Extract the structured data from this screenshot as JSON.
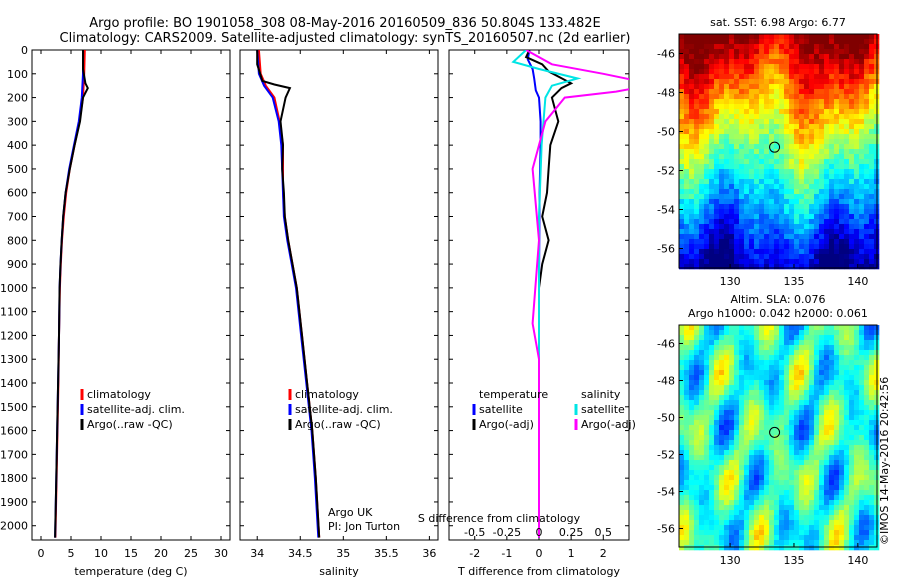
{
  "header": {
    "line1": "Argo profile: BO 1901058_308 08-May-2016 20160509_836 50.804S 133.482E",
    "line2": "Climatology: CARS2009. Satellite-adjusted climatology: synTS_20160507.nc (2d earlier)"
  },
  "colors": {
    "climatology": "#ff0000",
    "satellite": "#0000ff",
    "argo": "#000000",
    "sal_satellite": "#00e5e5",
    "sal_argo": "#ff00ff"
  },
  "chart_data": [
    {
      "type": "line",
      "name": "temperature",
      "xlabel": "temperature (deg C)",
      "ylabel": "",
      "xlim": [
        -1.5,
        31.5
      ],
      "ylim": [
        0,
        2060
      ],
      "x_ticks": [
        0,
        5,
        10,
        15,
        20,
        25,
        30
      ],
      "y_ticks": [
        0,
        100,
        200,
        300,
        400,
        500,
        600,
        700,
        800,
        900,
        1000,
        1100,
        1200,
        1300,
        1400,
        1500,
        1600,
        1700,
        1800,
        1900,
        2000
      ],
      "legend": [
        "climatology",
        "satellite-adj. clim.",
        "Argo(..raw -QC)"
      ],
      "series": [
        {
          "name": "climatology",
          "points": [
            [
              7.3,
              0
            ],
            [
              7.2,
              100
            ],
            [
              7.0,
              200
            ],
            [
              6.4,
              300
            ],
            [
              5.6,
              400
            ],
            [
              4.8,
              500
            ],
            [
              4.2,
              600
            ],
            [
              3.8,
              700
            ],
            [
              3.5,
              800
            ],
            [
              3.3,
              900
            ],
            [
              3.15,
              1000
            ],
            [
              3.0,
              1200
            ],
            [
              2.9,
              1400
            ],
            [
              2.75,
              1600
            ],
            [
              2.6,
              1800
            ],
            [
              2.4,
              2050
            ]
          ]
        },
        {
          "name": "satellite-adj. clim.",
          "points": [
            [
              7.0,
              0
            ],
            [
              7.0,
              100
            ],
            [
              6.8,
              200
            ],
            [
              6.3,
              300
            ],
            [
              5.5,
              400
            ],
            [
              4.7,
              500
            ],
            [
              4.1,
              600
            ],
            [
              3.7,
              700
            ],
            [
              3.45,
              800
            ],
            [
              3.25,
              900
            ],
            [
              3.1,
              1000
            ],
            [
              3.0,
              1200
            ],
            [
              2.85,
              1400
            ],
            [
              2.7,
              1600
            ],
            [
              2.55,
              1800
            ],
            [
              2.35,
              2050
            ]
          ]
        },
        {
          "name": "Argo(..raw -QC)",
          "points": [
            [
              7.0,
              0
            ],
            [
              7.0,
              80
            ],
            [
              7.4,
              140
            ],
            [
              7.8,
              160
            ],
            [
              7.0,
              200
            ],
            [
              6.5,
              300
            ],
            [
              5.6,
              400
            ],
            [
              4.8,
              500
            ],
            [
              4.1,
              600
            ],
            [
              3.7,
              700
            ],
            [
              3.45,
              800
            ],
            [
              3.25,
              900
            ],
            [
              3.1,
              1000
            ],
            [
              3.0,
              1200
            ],
            [
              2.85,
              1400
            ],
            [
              2.7,
              1600
            ],
            [
              2.55,
              1800
            ],
            [
              2.35,
              2050
            ]
          ]
        }
      ]
    },
    {
      "type": "line",
      "name": "salinity",
      "xlabel": "salinity",
      "ylabel": "",
      "xlim": [
        33.8,
        36.1
      ],
      "ylim": [
        0,
        2060
      ],
      "x_ticks": [
        34,
        34.5,
        35,
        35.5,
        36
      ],
      "x_tick_labels": [
        "34",
        "34.5",
        "35",
        "35.5",
        "36"
      ],
      "legend": [
        "climatology",
        "satellite-adj. clim.",
        "Argo(..raw -QC)"
      ],
      "annotation": [
        "Argo UK",
        "PI: Jon Turton"
      ],
      "series": [
        {
          "name": "climatology",
          "points": [
            [
              34.02,
              0
            ],
            [
              34.04,
              100
            ],
            [
              34.1,
              150
            ],
            [
              34.2,
              200
            ],
            [
              34.26,
              300
            ],
            [
              34.3,
              400
            ],
            [
              34.3,
              500
            ],
            [
              34.3,
              600
            ],
            [
              34.32,
              700
            ],
            [
              34.36,
              800
            ],
            [
              34.41,
              900
            ],
            [
              34.46,
              1000
            ],
            [
              34.52,
              1200
            ],
            [
              34.58,
              1400
            ],
            [
              34.64,
              1600
            ],
            [
              34.68,
              1800
            ],
            [
              34.72,
              2050
            ]
          ]
        },
        {
          "name": "satellite-adj. clim.",
          "points": [
            [
              34.0,
              0
            ],
            [
              34.02,
              100
            ],
            [
              34.08,
              150
            ],
            [
              34.18,
              200
            ],
            [
              34.25,
              300
            ],
            [
              34.28,
              400
            ],
            [
              34.29,
              500
            ],
            [
              34.3,
              600
            ],
            [
              34.31,
              700
            ],
            [
              34.35,
              800
            ],
            [
              34.4,
              900
            ],
            [
              34.45,
              1000
            ],
            [
              34.51,
              1200
            ],
            [
              34.57,
              1400
            ],
            [
              34.63,
              1600
            ],
            [
              34.67,
              1800
            ],
            [
              34.71,
              2050
            ]
          ]
        },
        {
          "name": "Argo(..raw -QC)",
          "points": [
            [
              34.0,
              0
            ],
            [
              34.0,
              60
            ],
            [
              34.06,
              130
            ],
            [
              34.2,
              145
            ],
            [
              34.38,
              160
            ],
            [
              34.33,
              200
            ],
            [
              34.27,
              300
            ],
            [
              34.3,
              400
            ],
            [
              34.29,
              500
            ],
            [
              34.31,
              600
            ],
            [
              34.32,
              700
            ],
            [
              34.36,
              800
            ],
            [
              34.41,
              900
            ],
            [
              34.46,
              1000
            ],
            [
              34.52,
              1200
            ],
            [
              34.58,
              1400
            ],
            [
              34.64,
              1600
            ],
            [
              34.68,
              1800
            ],
            [
              34.72,
              2050
            ]
          ]
        }
      ]
    },
    {
      "type": "line",
      "name": "difference",
      "xlabel": "T difference from climatology",
      "xlabel_top": "S difference from climatology",
      "ylabel": "",
      "xlim": [
        -2.8,
        2.8
      ],
      "ylim": [
        0,
        2060
      ],
      "x_ticks": [
        -2,
        -1,
        0,
        1,
        2
      ],
      "x_tick_labels": [
        "-2",
        "-1",
        "0",
        "1",
        "2"
      ],
      "s_ticks": [
        -0.5,
        -0.25,
        0,
        0.25,
        0.5
      ],
      "s_tick_labels": [
        "-0.5",
        "-0.25",
        "0",
        "0.25",
        "0.5"
      ],
      "legend_groups": [
        {
          "header": "temperature",
          "items": [
            "satellite",
            "Argo(-adj)"
          ]
        },
        {
          "header": "salinity",
          "items": [
            "satellite",
            "Argo(-adj)"
          ]
        }
      ],
      "series": [
        {
          "name": "satellite",
          "group": "temperature",
          "points": [
            [
              -0.3,
              0
            ],
            [
              -0.35,
              40
            ],
            [
              -0.2,
              80
            ],
            [
              -0.15,
              120
            ],
            [
              -0.1,
              170
            ],
            [
              0.0,
              200
            ],
            [
              0.05,
              300
            ],
            [
              0.05,
              400
            ],
            [
              0.02,
              600
            ],
            [
              0.0,
              1000
            ],
            [
              0.0,
              2050
            ]
          ]
        },
        {
          "name": "Argo(-adj)",
          "group": "temperature",
          "points": [
            [
              -0.3,
              0
            ],
            [
              -0.4,
              30
            ],
            [
              0.1,
              60
            ],
            [
              0.3,
              90
            ],
            [
              1.0,
              140
            ],
            [
              0.7,
              160
            ],
            [
              0.4,
              200
            ],
            [
              0.5,
              250
            ],
            [
              0.6,
              300
            ],
            [
              0.35,
              400
            ],
            [
              0.3,
              500
            ],
            [
              0.25,
              600
            ],
            [
              0.1,
              700
            ],
            [
              0.3,
              800
            ],
            [
              0.1,
              900
            ],
            [
              0.0,
              1000
            ],
            [
              0.0,
              1100
            ],
            [
              0.0,
              2050
            ]
          ]
        },
        {
          "name": "satellite",
          "group": "salinity",
          "points": [
            [
              -0.1,
              0
            ],
            [
              -0.2,
              50
            ],
            [
              0.0,
              80
            ],
            [
              0.3,
              120
            ],
            [
              0.1,
              150
            ],
            [
              0.05,
              200
            ],
            [
              0.02,
              400
            ],
            [
              0.0,
              700
            ],
            [
              0.0,
              2050
            ]
          ]
        },
        {
          "name": "Argo(-adj)",
          "group": "salinity",
          "points": [
            [
              -0.1,
              0
            ],
            [
              0.1,
              60
            ],
            [
              0.5,
              100
            ],
            [
              0.9,
              145
            ],
            [
              0.6,
              175
            ],
            [
              0.2,
              200
            ],
            [
              0.05,
              300
            ],
            [
              -0.05,
              500
            ],
            [
              0.0,
              800
            ],
            [
              -0.05,
              1150
            ],
            [
              0.0,
              1300
            ],
            [
              0.0,
              2050
            ]
          ]
        }
      ]
    },
    {
      "type": "heatmap",
      "name": "sst-map",
      "title": "sat. SST: 6.98 Argo: 6.77",
      "x_ticks": [
        130,
        135,
        140
      ],
      "y_ticks": [
        -46,
        -48,
        -50,
        -52,
        -54,
        -56
      ],
      "xlim": [
        126,
        141.5
      ],
      "ylim": [
        -57,
        -45
      ],
      "marker": [
        133.482,
        -50.804
      ]
    },
    {
      "type": "heatmap",
      "name": "sla-map",
      "title": "Altim. SLA: 0.076",
      "subtitle": "Argo h1000: 0.042 h2000: 0.061",
      "x_ticks": [
        130,
        135,
        140
      ],
      "y_ticks": [
        -46,
        -48,
        -50,
        -52,
        -54,
        -56
      ],
      "xlim": [
        126,
        141.5
      ],
      "ylim": [
        -57,
        -45
      ],
      "marker": [
        133.482,
        -50.804
      ]
    }
  ],
  "footer": {
    "stamp": "©IMOS 14-May-2016 20:42:56"
  }
}
